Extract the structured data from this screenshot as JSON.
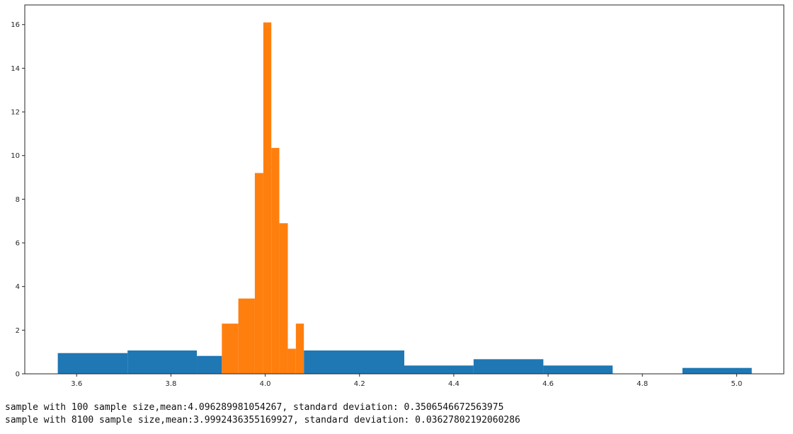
{
  "chart_data": {
    "type": "bar",
    "title": "",
    "xlabel": "",
    "ylabel": "",
    "xlim": [
      3.49,
      5.1
    ],
    "ylim": [
      0,
      16.9
    ],
    "xticks": [
      "3.6",
      "3.8",
      "4.0",
      "4.2",
      "4.4",
      "4.6",
      "4.8",
      "5.0"
    ],
    "yticks": [
      "0",
      "2",
      "4",
      "6",
      "8",
      "10",
      "12",
      "14",
      "16"
    ],
    "grid": false,
    "series": [
      {
        "color": "#1f77b4",
        "bins": [
          {
            "x0": 3.56,
            "x1": 3.708,
            "height": 0.95
          },
          {
            "x0": 3.708,
            "x1": 3.855,
            "height": 1.07
          },
          {
            "x0": 3.855,
            "x1": 3.908,
            "height": 0.82
          },
          {
            "x0": 4.082,
            "x1": 4.295,
            "height": 1.07
          },
          {
            "x0": 4.295,
            "x1": 4.442,
            "height": 0.38
          },
          {
            "x0": 4.442,
            "x1": 4.59,
            "height": 0.67
          },
          {
            "x0": 4.59,
            "x1": 4.737,
            "height": 0.38
          },
          {
            "x0": 4.885,
            "x1": 5.032,
            "height": 0.27
          }
        ]
      },
      {
        "color": "#ff7f0e",
        "bins": [
          {
            "x0": 3.908,
            "x1": 3.943,
            "height": 2.3
          },
          {
            "x0": 3.943,
            "x1": 3.978,
            "height": 3.45
          },
          {
            "x0": 3.978,
            "x1": 3.996,
            "height": 9.2
          },
          {
            "x0": 3.996,
            "x1": 4.013,
            "height": 16.1
          },
          {
            "x0": 4.013,
            "x1": 4.03,
            "height": 10.35
          },
          {
            "x0": 4.03,
            "x1": 4.048,
            "height": 6.9
          },
          {
            "x0": 4.048,
            "x1": 4.065,
            "height": 1.15
          },
          {
            "x0": 4.065,
            "x1": 4.082,
            "height": 2.3
          }
        ]
      }
    ]
  },
  "output": {
    "line1": "sample with 100 sample size,mean:4.096289981054267, standard deviation: 0.3506546672563975",
    "line2": "sample with 8100 sample size,mean:3.9992436355169927, standard deviation: 0.03627802192060286"
  }
}
